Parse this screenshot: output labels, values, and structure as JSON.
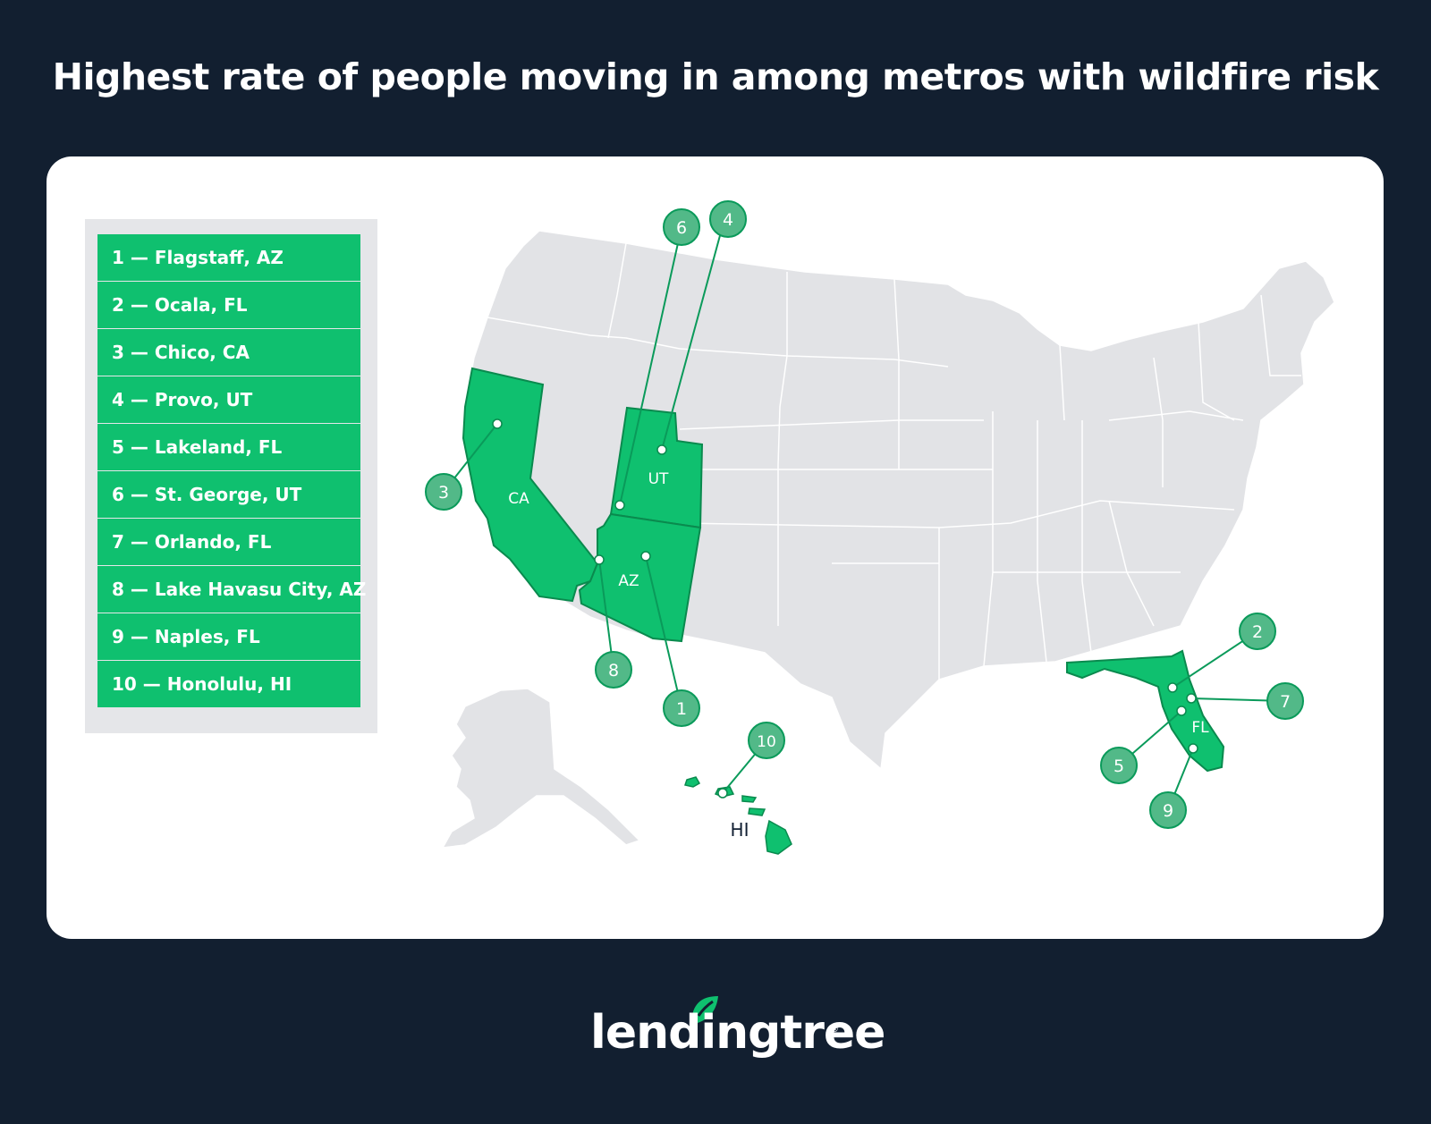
{
  "title": "Highest rate of people moving in among metros with wildfire risk",
  "legend": [
    {
      "rank": "1",
      "label": "1 — Flagstaff, AZ"
    },
    {
      "rank": "2",
      "label": "2 — Ocala, FL"
    },
    {
      "rank": "3",
      "label": "3 — Chico, CA"
    },
    {
      "rank": "4",
      "label": "4 — Provo, UT"
    },
    {
      "rank": "5",
      "label": "5 — Lakeland, FL"
    },
    {
      "rank": "6",
      "label": "6 — St. George, UT"
    },
    {
      "rank": "7",
      "label": "7 — Orlando, FL"
    },
    {
      "rank": "8",
      "label": "8 — Lake Havasu City, AZ"
    },
    {
      "rank": "9",
      "label": "9 — Naples, FL"
    },
    {
      "rank": "10",
      "label": "10 — Honolulu, HI"
    }
  ],
  "state_labels": {
    "ca": "CA",
    "ut": "UT",
    "az": "AZ",
    "fl": "FL",
    "hi": "HI"
  },
  "markers": {
    "m1": "1",
    "m2": "2",
    "m3": "3",
    "m4": "4",
    "m5": "5",
    "m6": "6",
    "m7": "7",
    "m8": "8",
    "m9": "9",
    "m10": "10"
  },
  "brand": {
    "name": "lendingtree",
    "registered": "®",
    "logo_icon": "leaf-icon"
  },
  "colors": {
    "background": "#121f30",
    "highlight": "#0fc06f",
    "marker": "#52b988",
    "land": "#e2e3e6",
    "border": "#ffffff"
  }
}
